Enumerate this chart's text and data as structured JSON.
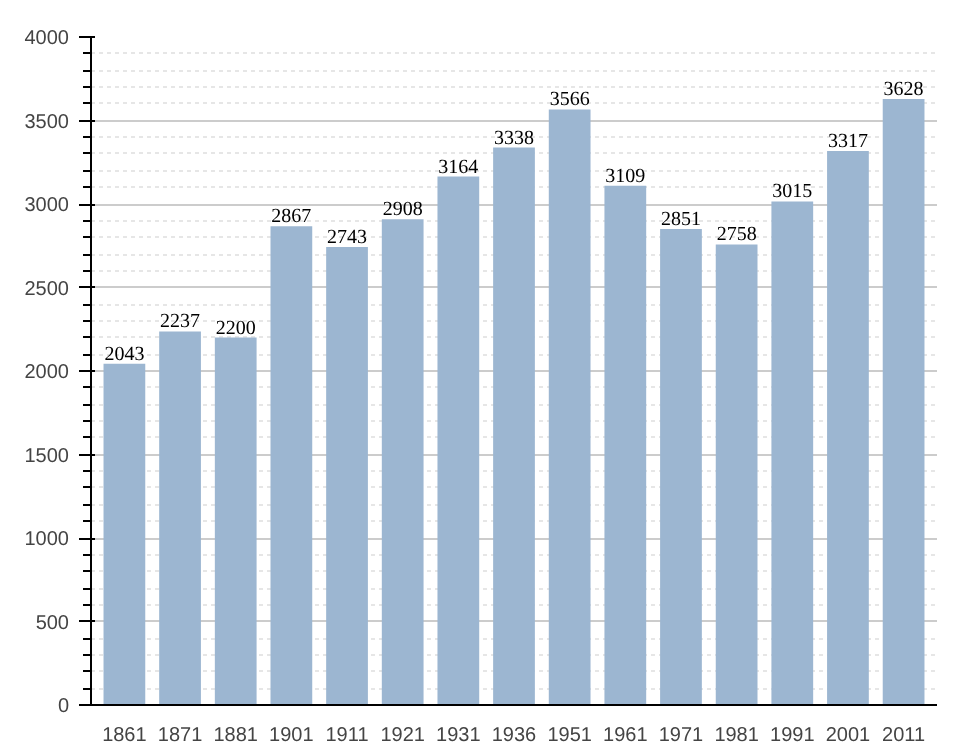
{
  "chart_data": {
    "type": "bar",
    "categories": [
      "1861",
      "1871",
      "1881",
      "1901",
      "1911",
      "1921",
      "1931",
      "1936",
      "1951",
      "1961",
      "1971",
      "1981",
      "1991",
      "2001",
      "2011"
    ],
    "values": [
      2043,
      2237,
      2200,
      2867,
      2743,
      2908,
      3164,
      3338,
      3566,
      3109,
      2851,
      2758,
      3015,
      3317,
      3628
    ],
    "color": "#9cb6d1",
    "ylim": [
      0,
      4000
    ],
    "yticks": [
      0,
      500,
      1000,
      1500,
      2000,
      2500,
      3000,
      3500,
      4000
    ],
    "grid": "y",
    "data_labels": true
  }
}
